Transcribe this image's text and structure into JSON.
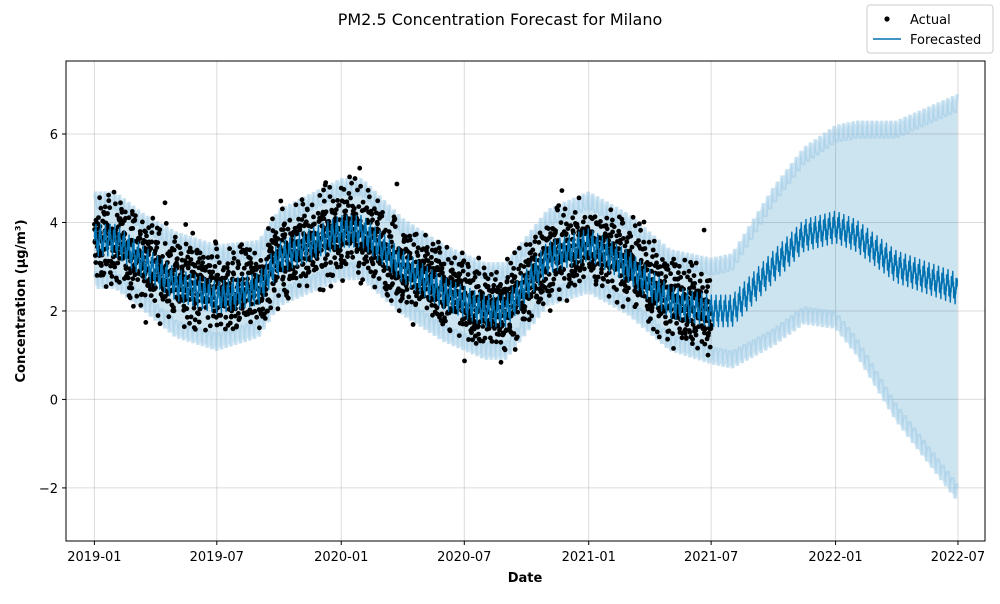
{
  "chart_data": {
    "type": "line",
    "title": "PM2.5 Concentration Forecast for Milano",
    "xlabel": "Date",
    "ylabel": "Concentration (µg/m³)",
    "x_range": [
      "2018-11-20",
      "2022-08-10"
    ],
    "ylim": [
      -3.2,
      7.65
    ],
    "grid": true,
    "legend_placement": "top-right",
    "x_ticks": [
      {
        "date": "2019-01-01",
        "label": "2019-01"
      },
      {
        "date": "2019-07-01",
        "label": "2019-07"
      },
      {
        "date": "2020-01-01",
        "label": "2020-01"
      },
      {
        "date": "2020-07-01",
        "label": "2020-07"
      },
      {
        "date": "2021-01-01",
        "label": "2021-01"
      },
      {
        "date": "2021-07-01",
        "label": "2021-07"
      },
      {
        "date": "2022-01-01",
        "label": "2022-01"
      },
      {
        "date": "2022-07-01",
        "label": "2022-07"
      }
    ],
    "y_ticks": [
      {
        "value": -2,
        "label": "−2"
      },
      {
        "value": 0,
        "label": "0"
      },
      {
        "value": 2,
        "label": "2"
      },
      {
        "value": 4,
        "label": "4"
      },
      {
        "value": 6,
        "label": "6"
      }
    ],
    "series": [
      {
        "name": "Actual",
        "kind": "scatter",
        "color": "#000000",
        "date_range": [
          "2019-01-01",
          "2021-07-01"
        ],
        "center": [
          [
            "2019-01-01",
            3.5
          ],
          [
            "2019-02-01",
            3.6
          ],
          [
            "2019-03-15",
            3.1
          ],
          [
            "2019-05-01",
            2.7
          ],
          [
            "2019-07-01",
            2.4
          ],
          [
            "2019-09-01",
            2.5
          ],
          [
            "2019-10-01",
            3.2
          ],
          [
            "2020-01-01",
            3.8
          ],
          [
            "2020-02-01",
            3.8
          ],
          [
            "2020-04-01",
            3.0
          ],
          [
            "2020-06-01",
            2.5
          ],
          [
            "2020-08-01",
            2.1
          ],
          [
            "2020-09-01",
            2.0
          ],
          [
            "2020-11-01",
            3.2
          ],
          [
            "2021-01-01",
            3.5
          ],
          [
            "2021-03-01",
            3.1
          ],
          [
            "2021-05-01",
            2.2
          ],
          [
            "2021-07-01",
            2.0
          ]
        ],
        "spread": 0.9
      },
      {
        "name": "Forecasted",
        "kind": "line",
        "color": "#0072B2",
        "date_range": [
          "2019-01-01",
          "2022-06-30"
        ],
        "yhat": [
          [
            "2019-01-01",
            3.6
          ],
          [
            "2019-02-01",
            3.6
          ],
          [
            "2019-03-15",
            3.1
          ],
          [
            "2019-05-01",
            2.6
          ],
          [
            "2019-07-01",
            2.3
          ],
          [
            "2019-09-01",
            2.5
          ],
          [
            "2019-10-01",
            3.2
          ],
          [
            "2020-01-01",
            3.8
          ],
          [
            "2020-02-01",
            3.8
          ],
          [
            "2020-04-01",
            3.0
          ],
          [
            "2020-06-01",
            2.4
          ],
          [
            "2020-08-01",
            2.0
          ],
          [
            "2020-09-01",
            2.0
          ],
          [
            "2020-11-01",
            3.2
          ],
          [
            "2021-01-01",
            3.5
          ],
          [
            "2021-03-01",
            3.0
          ],
          [
            "2021-05-01",
            2.2
          ],
          [
            "2021-07-01",
            2.0
          ],
          [
            "2021-08-01",
            2.0
          ],
          [
            "2021-10-01",
            3.0
          ],
          [
            "2021-11-15",
            3.7
          ],
          [
            "2022-01-01",
            3.9
          ],
          [
            "2022-02-01",
            3.7
          ],
          [
            "2022-04-01",
            3.0
          ],
          [
            "2022-06-30",
            2.5
          ]
        ],
        "interval_upper": [
          [
            "2019-01-01",
            4.5
          ],
          [
            "2019-02-01",
            4.5
          ],
          [
            "2019-03-15",
            4.0
          ],
          [
            "2019-05-01",
            3.6
          ],
          [
            "2019-07-01",
            3.3
          ],
          [
            "2019-09-01",
            3.4
          ],
          [
            "2019-10-01",
            4.1
          ],
          [
            "2020-01-01",
            4.8
          ],
          [
            "2020-02-01",
            4.8
          ],
          [
            "2020-04-01",
            3.9
          ],
          [
            "2020-06-01",
            3.3
          ],
          [
            "2020-08-01",
            2.9
          ],
          [
            "2020-09-01",
            2.9
          ],
          [
            "2020-11-01",
            4.1
          ],
          [
            "2021-01-01",
            4.5
          ],
          [
            "2021-03-01",
            4.0
          ],
          [
            "2021-05-01",
            3.2
          ],
          [
            "2021-07-01",
            3.0
          ],
          [
            "2021-08-01",
            3.1
          ],
          [
            "2021-10-01",
            4.6
          ],
          [
            "2021-11-15",
            5.5
          ],
          [
            "2022-01-01",
            6.0
          ],
          [
            "2022-02-01",
            6.1
          ],
          [
            "2022-04-01",
            6.1
          ],
          [
            "2022-06-30",
            6.7
          ]
        ],
        "interval_lower": [
          [
            "2019-01-01",
            2.7
          ],
          [
            "2019-02-01",
            2.7
          ],
          [
            "2019-03-15",
            2.2
          ],
          [
            "2019-05-01",
            1.6
          ],
          [
            "2019-07-01",
            1.3
          ],
          [
            "2019-09-01",
            1.6
          ],
          [
            "2019-10-01",
            2.3
          ],
          [
            "2020-01-01",
            2.9
          ],
          [
            "2020-02-01",
            2.9
          ],
          [
            "2020-04-01",
            2.1
          ],
          [
            "2020-06-01",
            1.5
          ],
          [
            "2020-08-01",
            1.1
          ],
          [
            "2020-09-01",
            1.1
          ],
          [
            "2020-11-01",
            2.3
          ],
          [
            "2021-01-01",
            2.6
          ],
          [
            "2021-03-01",
            2.1
          ],
          [
            "2021-05-01",
            1.3
          ],
          [
            "2021-07-01",
            1.0
          ],
          [
            "2021-08-01",
            0.9
          ],
          [
            "2021-10-01",
            1.4
          ],
          [
            "2021-11-15",
            1.9
          ],
          [
            "2022-01-01",
            1.8
          ],
          [
            "2022-02-01",
            1.2
          ],
          [
            "2022-04-01",
            -0.3
          ],
          [
            "2022-06-30",
            -2.1
          ]
        ]
      }
    ]
  }
}
